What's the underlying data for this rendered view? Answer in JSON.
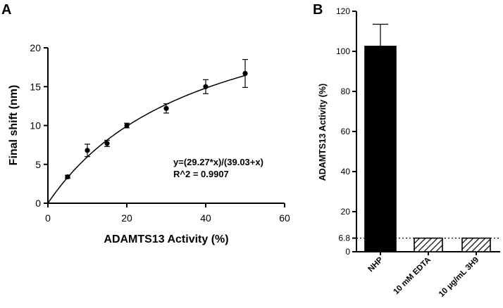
{
  "panels": {
    "a_label": "A",
    "b_label": "B"
  },
  "colors": {
    "ink": "#000000",
    "bar_fill": "#000000",
    "hatch_fill": "#ffffff"
  },
  "chart_data": [
    {
      "id": "A",
      "type": "scatter",
      "title": "",
      "xlabel": "ADAMTS13 Activity (%)",
      "ylabel": "Final shift (nm)",
      "xlim": [
        0,
        60
      ],
      "ylim": [
        0,
        20
      ],
      "xticks": [
        0,
        20,
        40,
        60
      ],
      "yticks": [
        0,
        5,
        10,
        15,
        20
      ],
      "points": [
        {
          "x": 5,
          "y": 3.4,
          "err": 0.2
        },
        {
          "x": 10,
          "y": 6.8,
          "err": 0.8
        },
        {
          "x": 15,
          "y": 7.7,
          "err": 0.4
        },
        {
          "x": 20,
          "y": 10.0,
          "err": 0.3
        },
        {
          "x": 30,
          "y": 12.2,
          "err": 0.6
        },
        {
          "x": 40,
          "y": 15.0,
          "err": 0.9
        },
        {
          "x": 50,
          "y": 16.7,
          "err": 1.8
        }
      ],
      "fit": {
        "type": "hyperbolic",
        "vmax": 29.27,
        "km": 39.03,
        "x_end": 50
      },
      "annotation": [
        "y=(29.27*x)/(39.03+x)",
        "R^2 = 0.9907"
      ],
      "grid": false
    },
    {
      "id": "B",
      "type": "bar",
      "title": "",
      "xlabel": "",
      "ylabel": "ADAMTS13 Activity (%)",
      "ylim": [
        0,
        120
      ],
      "yticks": [
        0,
        20,
        40,
        60,
        80,
        100,
        120
      ],
      "extra_tick": 6.8,
      "categories": [
        "NHP",
        "10 mM EDTA",
        "10 μg/mL 3H9"
      ],
      "values": [
        102.5,
        6.8,
        6.8
      ],
      "errors": [
        11,
        0,
        0
      ],
      "styles": [
        "solid",
        "hatched",
        "hatched"
      ],
      "reference_line": {
        "y": 6.8,
        "style": "dotted"
      },
      "grid": false
    }
  ]
}
